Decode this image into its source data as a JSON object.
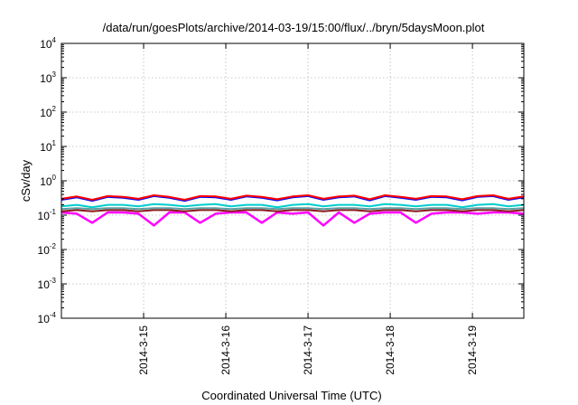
{
  "chart_data": {
    "type": "line",
    "title": "/data/run/goesPlots/archive/2014-03-19/15:00/flux/../bryn/5daysMoon.plot",
    "xlabel": "Coordinated Universal Time (UTC)",
    "ylabel": "cSv/day",
    "yscale": "log",
    "ylim": [
      0.0001,
      10000
    ],
    "yticks": [
      {
        "base": "10",
        "exp": "4",
        "value": 10000
      },
      {
        "base": "10",
        "exp": "3",
        "value": 1000
      },
      {
        "base": "10",
        "exp": "2",
        "value": 100
      },
      {
        "base": "10",
        "exp": "1",
        "value": 10
      },
      {
        "base": "10",
        "exp": "0",
        "value": 1
      },
      {
        "base": "10",
        "exp": "-1",
        "value": 0.1
      },
      {
        "base": "10",
        "exp": "-2",
        "value": 0.01
      },
      {
        "base": "10",
        "exp": "-3",
        "value": 0.001
      },
      {
        "base": "10",
        "exp": "-4",
        "value": 0.0001
      }
    ],
    "xlim": [
      "2014-03-14 00:00",
      "2014-03-19 15:00"
    ],
    "xticks": [
      {
        "label": "2014-3-15",
        "value": "2014-03-15 00:00"
      },
      {
        "label": "2014-3-16",
        "value": "2014-03-16 00:00"
      },
      {
        "label": "2014-3-17",
        "value": "2014-03-17 00:00"
      },
      {
        "label": "2014-3-18",
        "value": "2014-03-18 00:00"
      },
      {
        "label": "2014-3-19",
        "value": "2014-03-19 00:00"
      }
    ],
    "grid": true,
    "legend": "none",
    "series": [
      {
        "color": "#ff00ff",
        "values": [
          0.12,
          0.11,
          0.06,
          0.12,
          0.12,
          0.11,
          0.05,
          0.12,
          0.12,
          0.06,
          0.11,
          0.12,
          0.12,
          0.06,
          0.12,
          0.11,
          0.12,
          0.05,
          0.12,
          0.06,
          0.11,
          0.12,
          0.12,
          0.06,
          0.11,
          0.12,
          0.12,
          0.11,
          0.12,
          0.12,
          0.11
        ]
      },
      {
        "color": "#8b1a1a",
        "values": [
          0.13,
          0.14,
          0.13,
          0.14,
          0.14,
          0.13,
          0.14,
          0.14,
          0.13,
          0.14,
          0.14,
          0.13,
          0.14,
          0.14,
          0.13,
          0.14,
          0.14,
          0.13,
          0.14,
          0.14,
          0.13,
          0.14,
          0.14,
          0.13,
          0.14,
          0.14,
          0.13,
          0.14,
          0.14,
          0.13,
          0.14
        ]
      },
      {
        "color": "#5f9ea0",
        "values": [
          0.15,
          0.16,
          0.15,
          0.16,
          0.16,
          0.15,
          0.16,
          0.16,
          0.15,
          0.16,
          0.16,
          0.15,
          0.16,
          0.16,
          0.15,
          0.16,
          0.16,
          0.15,
          0.16,
          0.16,
          0.15,
          0.16,
          0.16,
          0.15,
          0.16,
          0.16,
          0.15,
          0.16,
          0.16,
          0.15,
          0.16
        ]
      },
      {
        "color": "#00cdcd",
        "values": [
          0.18,
          0.2,
          0.17,
          0.2,
          0.2,
          0.18,
          0.21,
          0.2,
          0.18,
          0.2,
          0.21,
          0.18,
          0.2,
          0.2,
          0.17,
          0.2,
          0.21,
          0.18,
          0.2,
          0.2,
          0.18,
          0.21,
          0.2,
          0.18,
          0.2,
          0.2,
          0.17,
          0.2,
          0.21,
          0.18,
          0.2
        ]
      },
      {
        "color": "#0000ff",
        "values": [
          0.28,
          0.33,
          0.26,
          0.34,
          0.32,
          0.28,
          0.36,
          0.32,
          0.26,
          0.34,
          0.33,
          0.28,
          0.35,
          0.32,
          0.27,
          0.33,
          0.36,
          0.28,
          0.33,
          0.35,
          0.27,
          0.36,
          0.32,
          0.28,
          0.34,
          0.33,
          0.27,
          0.34,
          0.36,
          0.28,
          0.33
        ]
      },
      {
        "color": "#ff0000",
        "values": [
          0.3,
          0.35,
          0.28,
          0.36,
          0.34,
          0.3,
          0.38,
          0.34,
          0.28,
          0.36,
          0.35,
          0.3,
          0.37,
          0.34,
          0.29,
          0.35,
          0.38,
          0.3,
          0.35,
          0.37,
          0.29,
          0.38,
          0.34,
          0.3,
          0.36,
          0.35,
          0.29,
          0.36,
          0.38,
          0.3,
          0.35
        ]
      }
    ]
  }
}
